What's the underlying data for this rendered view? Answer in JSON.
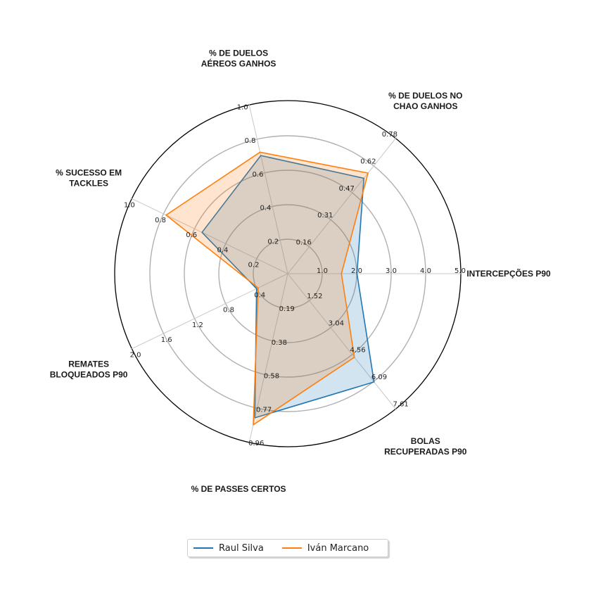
{
  "chart_data": {
    "type": "radar",
    "title": "",
    "axes": [
      {
        "label": [
          "INTERCEPÇÕES P90"
        ],
        "ticks": [
          "1.0",
          "2.0",
          "3.0",
          "4.0",
          "5.0"
        ],
        "range": [
          0,
          5
        ]
      },
      {
        "label": [
          "% DE DUELOS NO",
          "CHAO GANHOS"
        ],
        "ticks": [
          "0.16",
          "0.31",
          "0.47",
          "0.62",
          "0.78"
        ],
        "range": [
          0,
          0.78
        ]
      },
      {
        "label": [
          "% DE DUELOS",
          "AÉREOS GANHOS"
        ],
        "ticks": [
          "0.2",
          "0.4",
          "0.6",
          "0.8",
          "1.0"
        ],
        "range": [
          0,
          1.0
        ]
      },
      {
        "label": [
          "% SUCESSO EM",
          "TACKLES"
        ],
        "ticks": [
          "0.2",
          "0.4",
          "0.6",
          "0.8",
          "1.0"
        ],
        "range": [
          0,
          1.0
        ]
      },
      {
        "label": [
          "REMATES",
          "BLOQUEADOS P90"
        ],
        "ticks": [
          "0.4",
          "0.8",
          "1.2",
          "1.6",
          "2.0"
        ],
        "range": [
          0,
          2.0
        ]
      },
      {
        "label": [
          "% DE PASSES CERTOS"
        ],
        "ticks": [
          "0.19",
          "0.38",
          "0.58",
          "0.77",
          "0.96"
        ],
        "range": [
          0,
          0.96
        ]
      },
      {
        "label": [
          "BOLAS",
          "RECUPERADAS P90"
        ],
        "ticks": [
          "1.52",
          "3.04",
          "4.56",
          "6.09",
          "7.61"
        ],
        "range": [
          0,
          7.61
        ]
      }
    ],
    "series": [
      {
        "name": "Raul Silva",
        "color": "#1f77b4",
        "values": [
          2.0,
          0.55,
          0.7,
          0.55,
          0.4,
          0.82,
          6.09
        ]
      },
      {
        "name": "Iván Marcano",
        "color": "#ff7f0e",
        "values": [
          1.55,
          0.58,
          0.72,
          0.78,
          0.38,
          0.86,
          4.7
        ]
      }
    ],
    "grid": true,
    "legend_position": "bottom-center"
  }
}
